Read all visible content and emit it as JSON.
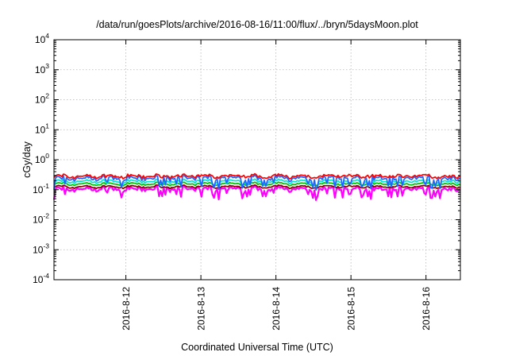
{
  "chart_data": {
    "type": "line",
    "title": "/data/run/goesPlots/archive/2016-08-16/11:00/flux/../bryn/5daysMoon.plot",
    "xlabel": "Coordinated Universal Time (UTC)",
    "ylabel": "cGy/day",
    "yscale": "log",
    "ylim": [
      0.0001,
      10000
    ],
    "y_ticks": [
      {
        "base": "10",
        "exp": "-4",
        "value": 0.0001
      },
      {
        "base": "10",
        "exp": "-3",
        "value": 0.001
      },
      {
        "base": "10",
        "exp": "-2",
        "value": 0.01
      },
      {
        "base": "10",
        "exp": "-1",
        "value": 0.1
      },
      {
        "base": "10",
        "exp": "0",
        "value": 1
      },
      {
        "base": "10",
        "exp": "1",
        "value": 10
      },
      {
        "base": "10",
        "exp": "2",
        "value": 100
      },
      {
        "base": "10",
        "exp": "3",
        "value": 1000
      },
      {
        "base": "10",
        "exp": "4",
        "value": 10000
      }
    ],
    "xlim": [
      "2016-08-11 01:00",
      "2016-08-16 11:00"
    ],
    "x_ticks": [
      {
        "label": "2016-8-12",
        "value": "2016-08-12"
      },
      {
        "label": "2016-8-13",
        "value": "2016-08-13"
      },
      {
        "label": "2016-8-14",
        "value": "2016-08-14"
      },
      {
        "label": "2016-8-15",
        "value": "2016-08-15"
      },
      {
        "label": "2016-8-16",
        "value": "2016-08-16"
      }
    ],
    "grid": true,
    "legend": "none",
    "series": [
      {
        "color": "#ff00ff",
        "level": 0.105,
        "variation": 0.3,
        "dips": true
      },
      {
        "color": "#8b0000",
        "level": 0.125,
        "variation": 0.1,
        "dips": false
      },
      {
        "color": "#00c000",
        "level": 0.155,
        "variation": 0.1,
        "dips": false
      },
      {
        "color": "#00e5d0",
        "level": 0.19,
        "variation": 0.18,
        "dips": true
      },
      {
        "color": "#1e64ff",
        "level": 0.24,
        "variation": 0.32,
        "dips": true
      },
      {
        "color": "#ff0000",
        "level": 0.28,
        "variation": 0.22,
        "dips": false
      }
    ]
  }
}
